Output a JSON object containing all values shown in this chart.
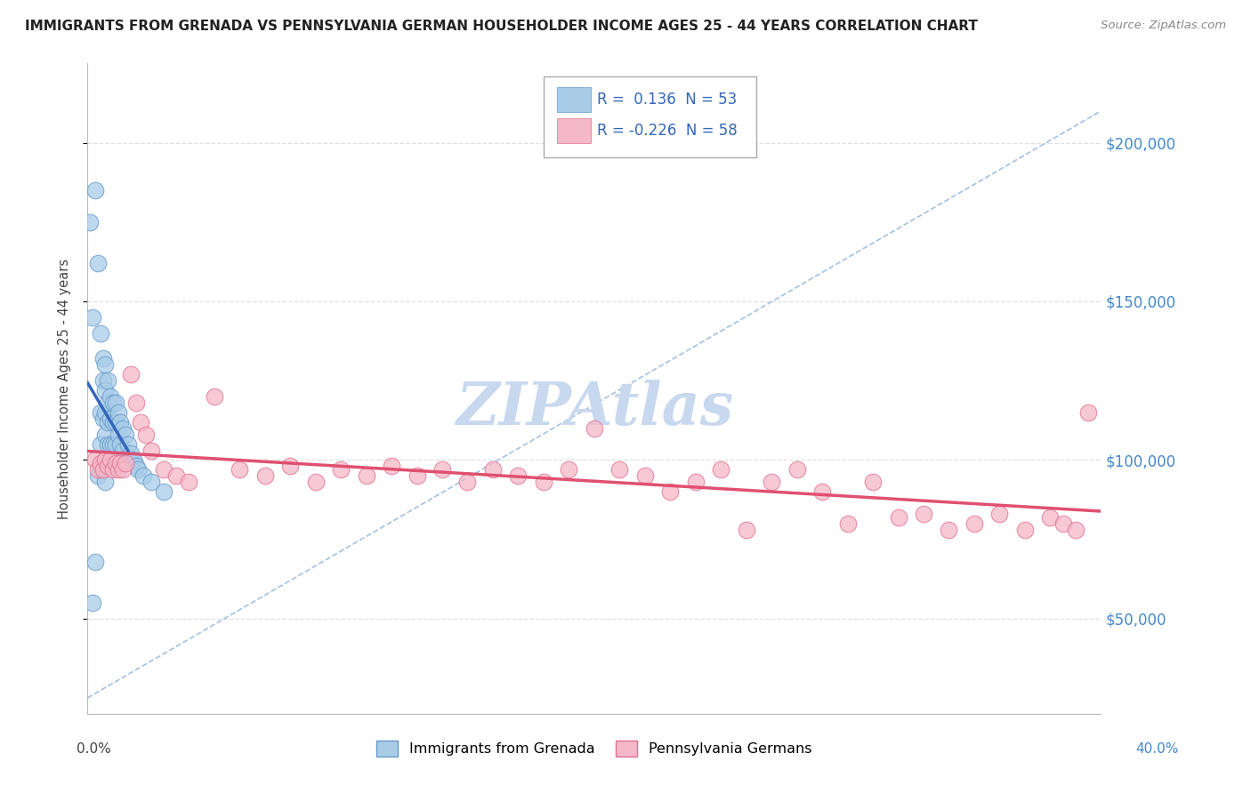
{
  "title": "IMMIGRANTS FROM GRENADA VS PENNSYLVANIA GERMAN HOUSEHOLDER INCOME AGES 25 - 44 YEARS CORRELATION CHART",
  "source": "Source: ZipAtlas.com",
  "ylabel": "Householder Income Ages 25 - 44 years",
  "ytick_values": [
    50000,
    100000,
    150000,
    200000
  ],
  "ytick_labels": [
    "$50,000",
    "$100,000",
    "$150,000",
    "$200,000"
  ],
  "xlim": [
    0.0,
    0.4
  ],
  "ylim": [
    20000,
    225000
  ],
  "series1_color": "#a8cce8",
  "series1_edge": "#6699cc",
  "series2_color": "#f5b8c8",
  "series2_edge": "#e07090",
  "trendline1_color": "#3366bb",
  "trendline2_color": "#e05070",
  "dashed_line_color": "#99bbdd",
  "watermark_color": "#c8d8ee",
  "legend_box_color": "#e8e8e8",
  "right_tick_color": "#4488cc",
  "grid_color": "#d8d8d8",
  "title_color": "#222222",
  "source_color": "#888888",
  "ylabel_color": "#444444",
  "xlabel_color": "#444444",
  "xlabel_right_color": "#4488cc",
  "R1": 0.136,
  "N1": 53,
  "R2": -0.226,
  "N2": 58,
  "blue_x": [
    0.001,
    0.002,
    0.002,
    0.003,
    0.003,
    0.004,
    0.004,
    0.005,
    0.005,
    0.005,
    0.005,
    0.006,
    0.006,
    0.006,
    0.006,
    0.007,
    0.007,
    0.007,
    0.007,
    0.007,
    0.007,
    0.008,
    0.008,
    0.008,
    0.008,
    0.008,
    0.009,
    0.009,
    0.009,
    0.01,
    0.01,
    0.01,
    0.01,
    0.011,
    0.011,
    0.011,
    0.011,
    0.012,
    0.012,
    0.012,
    0.013,
    0.013,
    0.014,
    0.014,
    0.015,
    0.016,
    0.017,
    0.018,
    0.019,
    0.02,
    0.022,
    0.025,
    0.03
  ],
  "blue_y": [
    175000,
    55000,
    145000,
    185000,
    68000,
    162000,
    95000,
    140000,
    105000,
    115000,
    97000,
    132000,
    125000,
    113000,
    98000,
    130000,
    122000,
    115000,
    108000,
    100000,
    93000,
    125000,
    118000,
    112000,
    105000,
    98000,
    120000,
    113000,
    105000,
    118000,
    112000,
    105000,
    98000,
    118000,
    112000,
    105000,
    98000,
    115000,
    108000,
    100000,
    112000,
    105000,
    110000,
    103000,
    108000,
    105000,
    102000,
    100000,
    98000,
    97000,
    95000,
    93000,
    90000
  ],
  "pink_x": [
    0.003,
    0.004,
    0.005,
    0.006,
    0.007,
    0.008,
    0.009,
    0.01,
    0.011,
    0.012,
    0.013,
    0.014,
    0.015,
    0.017,
    0.019,
    0.021,
    0.023,
    0.025,
    0.03,
    0.035,
    0.04,
    0.05,
    0.06,
    0.07,
    0.08,
    0.09,
    0.1,
    0.11,
    0.12,
    0.13,
    0.14,
    0.15,
    0.16,
    0.17,
    0.18,
    0.19,
    0.2,
    0.21,
    0.22,
    0.23,
    0.24,
    0.25,
    0.26,
    0.27,
    0.28,
    0.29,
    0.3,
    0.31,
    0.32,
    0.33,
    0.34,
    0.35,
    0.36,
    0.37,
    0.38,
    0.385,
    0.39,
    0.395
  ],
  "pink_y": [
    100000,
    97000,
    99000,
    97000,
    100000,
    98000,
    100000,
    97000,
    99000,
    97000,
    99000,
    97000,
    99000,
    127000,
    118000,
    112000,
    108000,
    103000,
    97000,
    95000,
    93000,
    120000,
    97000,
    95000,
    98000,
    93000,
    97000,
    95000,
    98000,
    95000,
    97000,
    93000,
    97000,
    95000,
    93000,
    97000,
    110000,
    97000,
    95000,
    90000,
    93000,
    97000,
    78000,
    93000,
    97000,
    90000,
    80000,
    93000,
    82000,
    83000,
    78000,
    80000,
    83000,
    78000,
    82000,
    80000,
    78000,
    115000
  ]
}
